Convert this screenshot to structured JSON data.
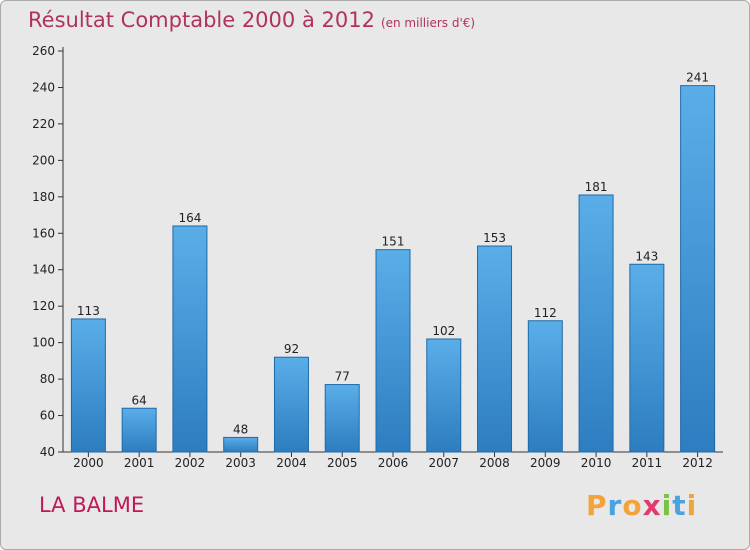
{
  "chart_data": {
    "type": "bar",
    "title": "Résultat Comptable 2000 à 2012",
    "subtitle": "(en milliers d'€)",
    "xlabel": "",
    "ylabel": "",
    "categories": [
      "2000",
      "2001",
      "2002",
      "2003",
      "2004",
      "2005",
      "2006",
      "2007",
      "2008",
      "2009",
      "2010",
      "2011",
      "2012"
    ],
    "values": [
      113,
      64,
      164,
      48,
      92,
      77,
      151,
      102,
      153,
      112,
      181,
      143,
      241
    ],
    "ylim": [
      40,
      260
    ],
    "yticks": [
      40,
      60,
      80,
      100,
      120,
      140,
      160,
      180,
      200,
      220,
      240,
      260
    ],
    "grid": false,
    "bar_color_light": "#5aaee8",
    "bar_color_dark": "#2d7dc0"
  },
  "commune": "LA BALME",
  "brand": {
    "letters": [
      "P",
      "r",
      "o",
      "x",
      "i",
      "t",
      "i"
    ],
    "colors": [
      "#f2a33a",
      "#4aa3df",
      "#f2a33a",
      "#e03a6e",
      "#7cc242",
      "#4aa3df",
      "#f2a33a"
    ]
  }
}
